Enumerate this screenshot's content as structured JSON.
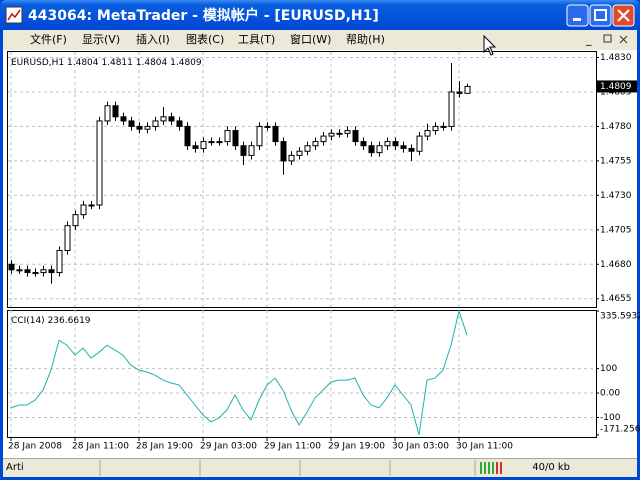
{
  "window": {
    "title": "443064: MetaTrader - 模拟帐户 - [EURUSD,H1]",
    "menu": [
      "文件(F)",
      "显示(V)",
      "插入(I)",
      "图表(C)",
      "工具(T)",
      "窗口(W)",
      "帮助(H)"
    ]
  },
  "chart_data": [
    {
      "type": "candlestick",
      "title": "EURUSD,H1",
      "categories": [
        "28 Jan 2008",
        null,
        null,
        null,
        null,
        null,
        null,
        null,
        "28 Jan 11:00",
        null,
        null,
        null,
        null,
        null,
        null,
        null,
        "28 Jan 19:00",
        null,
        null,
        null,
        null,
        null,
        null,
        null,
        "29 Jan 03:00",
        null,
        null,
        null,
        null,
        null,
        null,
        null,
        "29 Jan 11:00",
        null,
        null,
        null,
        null,
        null,
        null,
        null,
        "29 Jan 19:00",
        null,
        null,
        null,
        null,
        null,
        null,
        null,
        "30 Jan 03:00",
        null,
        null,
        null,
        null,
        null,
        null,
        null,
        "30 Jan 11:00",
        null
      ],
      "open": [
        1.468,
        1.4676,
        1.4676,
        1.4674,
        1.4674,
        1.4676,
        1.4674,
        1.469,
        1.4708,
        1.4716,
        1.4723,
        1.4723,
        1.4784,
        1.4795,
        1.4787,
        1.4784,
        1.478,
        1.4778,
        1.478,
        1.4784,
        1.4787,
        1.4784,
        1.478,
        1.4766,
        1.4764,
        1.4769,
        1.4769,
        1.4769,
        1.4777,
        1.4766,
        1.4759,
        1.4766,
        1.478,
        1.478,
        1.4769,
        1.4755,
        1.4759,
        1.4762,
        1.4766,
        1.4769,
        1.4773,
        1.4775,
        1.4775,
        1.4777,
        1.4769,
        1.4766,
        1.4761,
        1.4766,
        1.4769,
        1.4766,
        1.4764,
        1.4762,
        1.4773,
        1.4777,
        1.478,
        1.478,
        1.4805,
        1.4804
      ],
      "high": [
        1.4683,
        1.4679,
        1.4679,
        1.4677,
        1.4679,
        1.4679,
        1.4693,
        1.4711,
        1.4719,
        1.4726,
        1.4726,
        1.4787,
        1.4798,
        1.4798,
        1.479,
        1.4787,
        1.4783,
        1.4783,
        1.4787,
        1.4794,
        1.479,
        1.4787,
        1.4783,
        1.4769,
        1.4772,
        1.4772,
        1.4772,
        1.478,
        1.478,
        1.4769,
        1.4769,
        1.4783,
        1.4783,
        1.4783,
        1.4772,
        1.4762,
        1.4765,
        1.4769,
        1.4772,
        1.4776,
        1.4778,
        1.4778,
        1.478,
        1.478,
        1.4772,
        1.4769,
        1.4769,
        1.4772,
        1.4772,
        1.4769,
        1.4767,
        1.4776,
        1.4782,
        1.4783,
        1.4783,
        1.4826,
        1.4813,
        1.4811
      ],
      "low": [
        1.4673,
        1.4673,
        1.4671,
        1.4671,
        1.4671,
        1.4666,
        1.4671,
        1.4687,
        1.4705,
        1.4713,
        1.472,
        1.472,
        1.4781,
        1.4784,
        1.4781,
        1.4777,
        1.4775,
        1.4775,
        1.4777,
        1.4781,
        1.4781,
        1.4777,
        1.4763,
        1.4761,
        1.4761,
        1.4766,
        1.4766,
        1.4766,
        1.4763,
        1.4752,
        1.4756,
        1.4763,
        1.4777,
        1.4766,
        1.4745,
        1.4752,
        1.4756,
        1.4759,
        1.4763,
        1.4766,
        1.477,
        1.4772,
        1.4772,
        1.4766,
        1.4763,
        1.4758,
        1.4758,
        1.4763,
        1.4763,
        1.4761,
        1.4755,
        1.4759,
        1.477,
        1.4774,
        1.4777,
        1.4777,
        1.4801,
        1.4804
      ],
      "close": [
        1.4676,
        1.4676,
        1.4674,
        1.4674,
        1.4676,
        1.4674,
        1.469,
        1.4708,
        1.4716,
        1.4723,
        1.4723,
        1.4784,
        1.4795,
        1.4787,
        1.4784,
        1.478,
        1.4778,
        1.478,
        1.4784,
        1.4787,
        1.4784,
        1.478,
        1.4766,
        1.4764,
        1.4769,
        1.4769,
        1.4769,
        1.4777,
        1.4766,
        1.4759,
        1.4766,
        1.478,
        1.478,
        1.4769,
        1.4755,
        1.4759,
        1.4762,
        1.4766,
        1.4769,
        1.4773,
        1.4775,
        1.4775,
        1.4777,
        1.4769,
        1.4766,
        1.4761,
        1.4766,
        1.4769,
        1.4766,
        1.4764,
        1.4762,
        1.4773,
        1.4777,
        1.478,
        1.478,
        1.4805,
        1.4804,
        1.4809
      ],
      "up_color": "#ffffff",
      "down_color": "#000000",
      "ylim": [
        1.4649,
        1.4834
      ],
      "yticks": [
        {
          "value": 1.483,
          "label": "1.4830"
        },
        1.4805,
        {
          "value": 1.478,
          "label": "1.4780"
        },
        1.4755,
        {
          "value": 1.473,
          "label": "1.4730"
        },
        1.4705,
        {
          "value": 1.468,
          "label": "1.4680"
        },
        1.4655
      ],
      "grid": true
    },
    {
      "type": "line",
      "series": [
        {
          "name": "CCI(14)",
          "color": "#20b2aa",
          "values": [
            -61,
            -49,
            -49,
            -29,
            12,
            94,
            216,
            196,
            155,
            184,
            143,
            167,
            196,
            176,
            155,
            114,
            94,
            86,
            73,
            53,
            41,
            33,
            -8,
            -49,
            -90,
            -118,
            -102,
            -69,
            -8,
            -69,
            -110,
            -29,
            33,
            61,
            12,
            -69,
            -131,
            -78,
            -20,
            12,
            45,
            53,
            53,
            61,
            -8,
            -49,
            -61,
            -20,
            33,
            -8,
            -49,
            -171.256,
            53,
            61,
            94,
            196,
            335.5932,
            236.6619
          ]
        }
      ],
      "ylim": [
        -180,
        340
      ],
      "yticks": [
        335.5932,
        100,
        {
          "value": 0,
          "label": "0.00"
        },
        -100,
        -171.256
      ],
      "grid": true
    }
  ],
  "status_bar": {
    "profile": "Arti",
    "traffic": "40/0 kb"
  }
}
